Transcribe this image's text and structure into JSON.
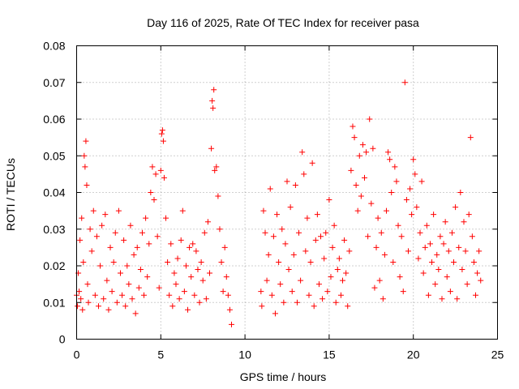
{
  "chart_data": {
    "type": "scatter",
    "title": "Day 116 of 2025, Rate Of TEC Index for receiver pasa",
    "xlabel": "GPS time / hours",
    "ylabel": "ROTI / TECUs",
    "xlim": [
      0,
      25
    ],
    "ylim": [
      0,
      0.08
    ],
    "x_ticks": [
      "0",
      "5",
      "10",
      "15",
      "20",
      "25"
    ],
    "y_ticks": [
      "0",
      "0.01",
      "0.02",
      "0.03",
      "0.04",
      "0.05",
      "0.06",
      "0.07",
      "0.08"
    ],
    "grid": true,
    "marker": "+",
    "marker_color": "#ff0000",
    "data_gap_hours": [
      9.3,
      10.9
    ],
    "series": [
      {
        "points": [
          [
            0.0,
            0.012
          ],
          [
            0.05,
            0.009
          ],
          [
            0.1,
            0.018
          ],
          [
            0.15,
            0.013
          ],
          [
            0.2,
            0.027
          ],
          [
            0.25,
            0.011
          ],
          [
            0.3,
            0.033
          ],
          [
            0.35,
            0.008
          ],
          [
            0.4,
            0.021
          ],
          [
            0.45,
            0.05
          ],
          [
            0.5,
            0.047
          ],
          [
            0.55,
            0.054
          ],
          [
            0.6,
            0.042
          ],
          [
            0.65,
            0.015
          ],
          [
            0.7,
            0.01
          ],
          [
            0.8,
            0.03
          ],
          [
            0.9,
            0.024
          ],
          [
            1.0,
            0.035
          ],
          [
            1.1,
            0.012
          ],
          [
            1.2,
            0.028
          ],
          [
            1.3,
            0.009
          ],
          [
            1.4,
            0.02
          ],
          [
            1.5,
            0.031
          ],
          [
            1.6,
            0.011
          ],
          [
            1.7,
            0.034
          ],
          [
            1.8,
            0.016
          ],
          [
            1.9,
            0.008
          ],
          [
            2.0,
            0.025
          ],
          [
            2.1,
            0.013
          ],
          [
            2.2,
            0.021
          ],
          [
            2.3,
            0.029
          ],
          [
            2.4,
            0.01
          ],
          [
            2.5,
            0.035
          ],
          [
            2.6,
            0.018
          ],
          [
            2.7,
            0.012
          ],
          [
            2.8,
            0.027
          ],
          [
            2.9,
            0.009
          ],
          [
            3.0,
            0.02
          ],
          [
            3.1,
            0.015
          ],
          [
            3.2,
            0.031
          ],
          [
            3.3,
            0.011
          ],
          [
            3.4,
            0.023
          ],
          [
            3.5,
            0.007
          ],
          [
            3.6,
            0.025
          ],
          [
            3.7,
            0.014
          ],
          [
            3.8,
            0.019
          ],
          [
            3.9,
            0.029
          ],
          [
            4.0,
            0.012
          ],
          [
            4.1,
            0.033
          ],
          [
            4.2,
            0.017
          ],
          [
            4.3,
            0.026
          ],
          [
            4.4,
            0.04
          ],
          [
            4.5,
            0.047
          ],
          [
            4.6,
            0.038
          ],
          [
            4.7,
            0.045
          ],
          [
            4.8,
            0.028
          ],
          [
            4.9,
            0.014
          ],
          [
            5.0,
            0.046
          ],
          [
            5.05,
            0.056
          ],
          [
            5.1,
            0.057
          ],
          [
            5.15,
            0.054
          ],
          [
            5.2,
            0.044
          ],
          [
            5.3,
            0.033
          ],
          [
            5.4,
            0.021
          ],
          [
            5.5,
            0.012
          ],
          [
            5.6,
            0.026
          ],
          [
            5.7,
            0.009
          ],
          [
            5.8,
            0.018
          ],
          [
            5.9,
            0.015
          ],
          [
            6.0,
            0.022
          ],
          [
            6.1,
            0.011
          ],
          [
            6.2,
            0.027
          ],
          [
            6.3,
            0.035
          ],
          [
            6.4,
            0.013
          ],
          [
            6.5,
            0.02
          ],
          [
            6.6,
            0.008
          ],
          [
            6.7,
            0.025
          ],
          [
            6.8,
            0.017
          ],
          [
            6.9,
            0.026
          ],
          [
            7.0,
            0.012
          ],
          [
            7.1,
            0.024
          ],
          [
            7.2,
            0.019
          ],
          [
            7.3,
            0.01
          ],
          [
            7.4,
            0.021
          ],
          [
            7.5,
            0.016
          ],
          [
            7.6,
            0.029
          ],
          [
            7.7,
            0.011
          ],
          [
            7.8,
            0.032
          ],
          [
            7.9,
            0.018
          ],
          [
            8.0,
            0.052
          ],
          [
            8.05,
            0.065
          ],
          [
            8.1,
            0.063
          ],
          [
            8.15,
            0.068
          ],
          [
            8.2,
            0.046
          ],
          [
            8.3,
            0.047
          ],
          [
            8.4,
            0.039
          ],
          [
            8.5,
            0.03
          ],
          [
            8.6,
            0.021
          ],
          [
            8.7,
            0.013
          ],
          [
            8.8,
            0.025
          ],
          [
            8.9,
            0.017
          ],
          [
            9.0,
            0.012
          ],
          [
            9.1,
            0.008
          ],
          [
            9.2,
            0.004
          ],
          [
            10.95,
            0.013
          ],
          [
            11.0,
            0.009
          ],
          [
            11.1,
            0.035
          ],
          [
            11.2,
            0.029
          ],
          [
            11.3,
            0.016
          ],
          [
            11.4,
            0.023
          ],
          [
            11.5,
            0.041
          ],
          [
            11.6,
            0.012
          ],
          [
            11.7,
            0.028
          ],
          [
            11.8,
            0.007
          ],
          [
            11.9,
            0.034
          ],
          [
            12.0,
            0.021
          ],
          [
            12.1,
            0.015
          ],
          [
            12.2,
            0.03
          ],
          [
            12.3,
            0.01
          ],
          [
            12.4,
            0.026
          ],
          [
            12.5,
            0.043
          ],
          [
            12.6,
            0.019
          ],
          [
            12.7,
            0.036
          ],
          [
            12.8,
            0.013
          ],
          [
            12.9,
            0.023
          ],
          [
            13.0,
            0.042
          ],
          [
            13.1,
            0.01
          ],
          [
            13.2,
            0.029
          ],
          [
            13.3,
            0.016
          ],
          [
            13.4,
            0.051
          ],
          [
            13.5,
            0.045
          ],
          [
            13.6,
            0.024
          ],
          [
            13.7,
            0.033
          ],
          [
            13.8,
            0.012
          ],
          [
            13.9,
            0.021
          ],
          [
            14.0,
            0.048
          ],
          [
            14.1,
            0.009
          ],
          [
            14.2,
            0.027
          ],
          [
            14.3,
            0.034
          ],
          [
            14.4,
            0.015
          ],
          [
            14.5,
            0.028
          ],
          [
            14.6,
            0.011
          ],
          [
            14.7,
            0.022
          ],
          [
            14.8,
            0.029
          ],
          [
            14.9,
            0.013
          ],
          [
            15.0,
            0.038
          ],
          [
            15.1,
            0.017
          ],
          [
            15.2,
            0.025
          ],
          [
            15.3,
            0.031
          ],
          [
            15.4,
            0.01
          ],
          [
            15.5,
            0.019
          ],
          [
            15.6,
            0.022
          ],
          [
            15.7,
            0.012
          ],
          [
            15.8,
            0.016
          ],
          [
            15.9,
            0.027
          ],
          [
            16.0,
            0.018
          ],
          [
            16.1,
            0.009
          ],
          [
            16.2,
            0.024
          ],
          [
            16.3,
            0.046
          ],
          [
            16.4,
            0.058
          ],
          [
            16.5,
            0.055
          ],
          [
            16.6,
            0.042
          ],
          [
            16.7,
            0.035
          ],
          [
            16.8,
            0.05
          ],
          [
            16.9,
            0.039
          ],
          [
            17.0,
            0.053
          ],
          [
            17.1,
            0.044
          ],
          [
            17.2,
            0.051
          ],
          [
            17.3,
            0.028
          ],
          [
            17.4,
            0.06
          ],
          [
            17.5,
            0.037
          ],
          [
            17.6,
            0.052
          ],
          [
            17.7,
            0.014
          ],
          [
            17.8,
            0.025
          ],
          [
            17.9,
            0.033
          ],
          [
            18.0,
            0.016
          ],
          [
            18.1,
            0.029
          ],
          [
            18.2,
            0.011
          ],
          [
            18.3,
            0.023
          ],
          [
            18.4,
            0.035
          ],
          [
            18.5,
            0.051
          ],
          [
            18.6,
            0.049
          ],
          [
            18.7,
            0.04
          ],
          [
            18.8,
            0.021
          ],
          [
            18.9,
            0.047
          ],
          [
            19.0,
            0.043
          ],
          [
            19.1,
            0.031
          ],
          [
            19.2,
            0.017
          ],
          [
            19.3,
            0.028
          ],
          [
            19.4,
            0.013
          ],
          [
            19.5,
            0.07
          ],
          [
            19.6,
            0.038
          ],
          [
            19.7,
            0.024
          ],
          [
            19.8,
            0.041
          ],
          [
            19.9,
            0.034
          ],
          [
            20.0,
            0.049
          ],
          [
            20.1,
            0.045
          ],
          [
            20.2,
            0.036
          ],
          [
            20.3,
            0.022
          ],
          [
            20.4,
            0.029
          ],
          [
            20.5,
            0.043
          ],
          [
            20.6,
            0.018
          ],
          [
            20.7,
            0.025
          ],
          [
            20.8,
            0.031
          ],
          [
            20.9,
            0.012
          ],
          [
            21.0,
            0.026
          ],
          [
            21.1,
            0.021
          ],
          [
            21.2,
            0.034
          ],
          [
            21.3,
            0.015
          ],
          [
            21.4,
            0.023
          ],
          [
            21.5,
            0.019
          ],
          [
            21.6,
            0.028
          ],
          [
            21.7,
            0.011
          ],
          [
            21.8,
            0.026
          ],
          [
            21.9,
            0.032
          ],
          [
            22.0,
            0.017
          ],
          [
            22.1,
            0.024
          ],
          [
            22.2,
            0.013
          ],
          [
            22.3,
            0.029
          ],
          [
            22.4,
            0.021
          ],
          [
            22.5,
            0.036
          ],
          [
            22.6,
            0.011
          ],
          [
            22.7,
            0.025
          ],
          [
            22.8,
            0.04
          ],
          [
            22.9,
            0.019
          ],
          [
            23.0,
            0.032
          ],
          [
            23.1,
            0.024
          ],
          [
            23.2,
            0.015
          ],
          [
            23.3,
            0.034
          ],
          [
            23.4,
            0.055
          ],
          [
            23.5,
            0.028
          ],
          [
            23.6,
            0.021
          ],
          [
            23.7,
            0.012
          ],
          [
            23.8,
            0.018
          ],
          [
            23.9,
            0.024
          ],
          [
            24.0,
            0.016
          ]
        ]
      }
    ]
  }
}
